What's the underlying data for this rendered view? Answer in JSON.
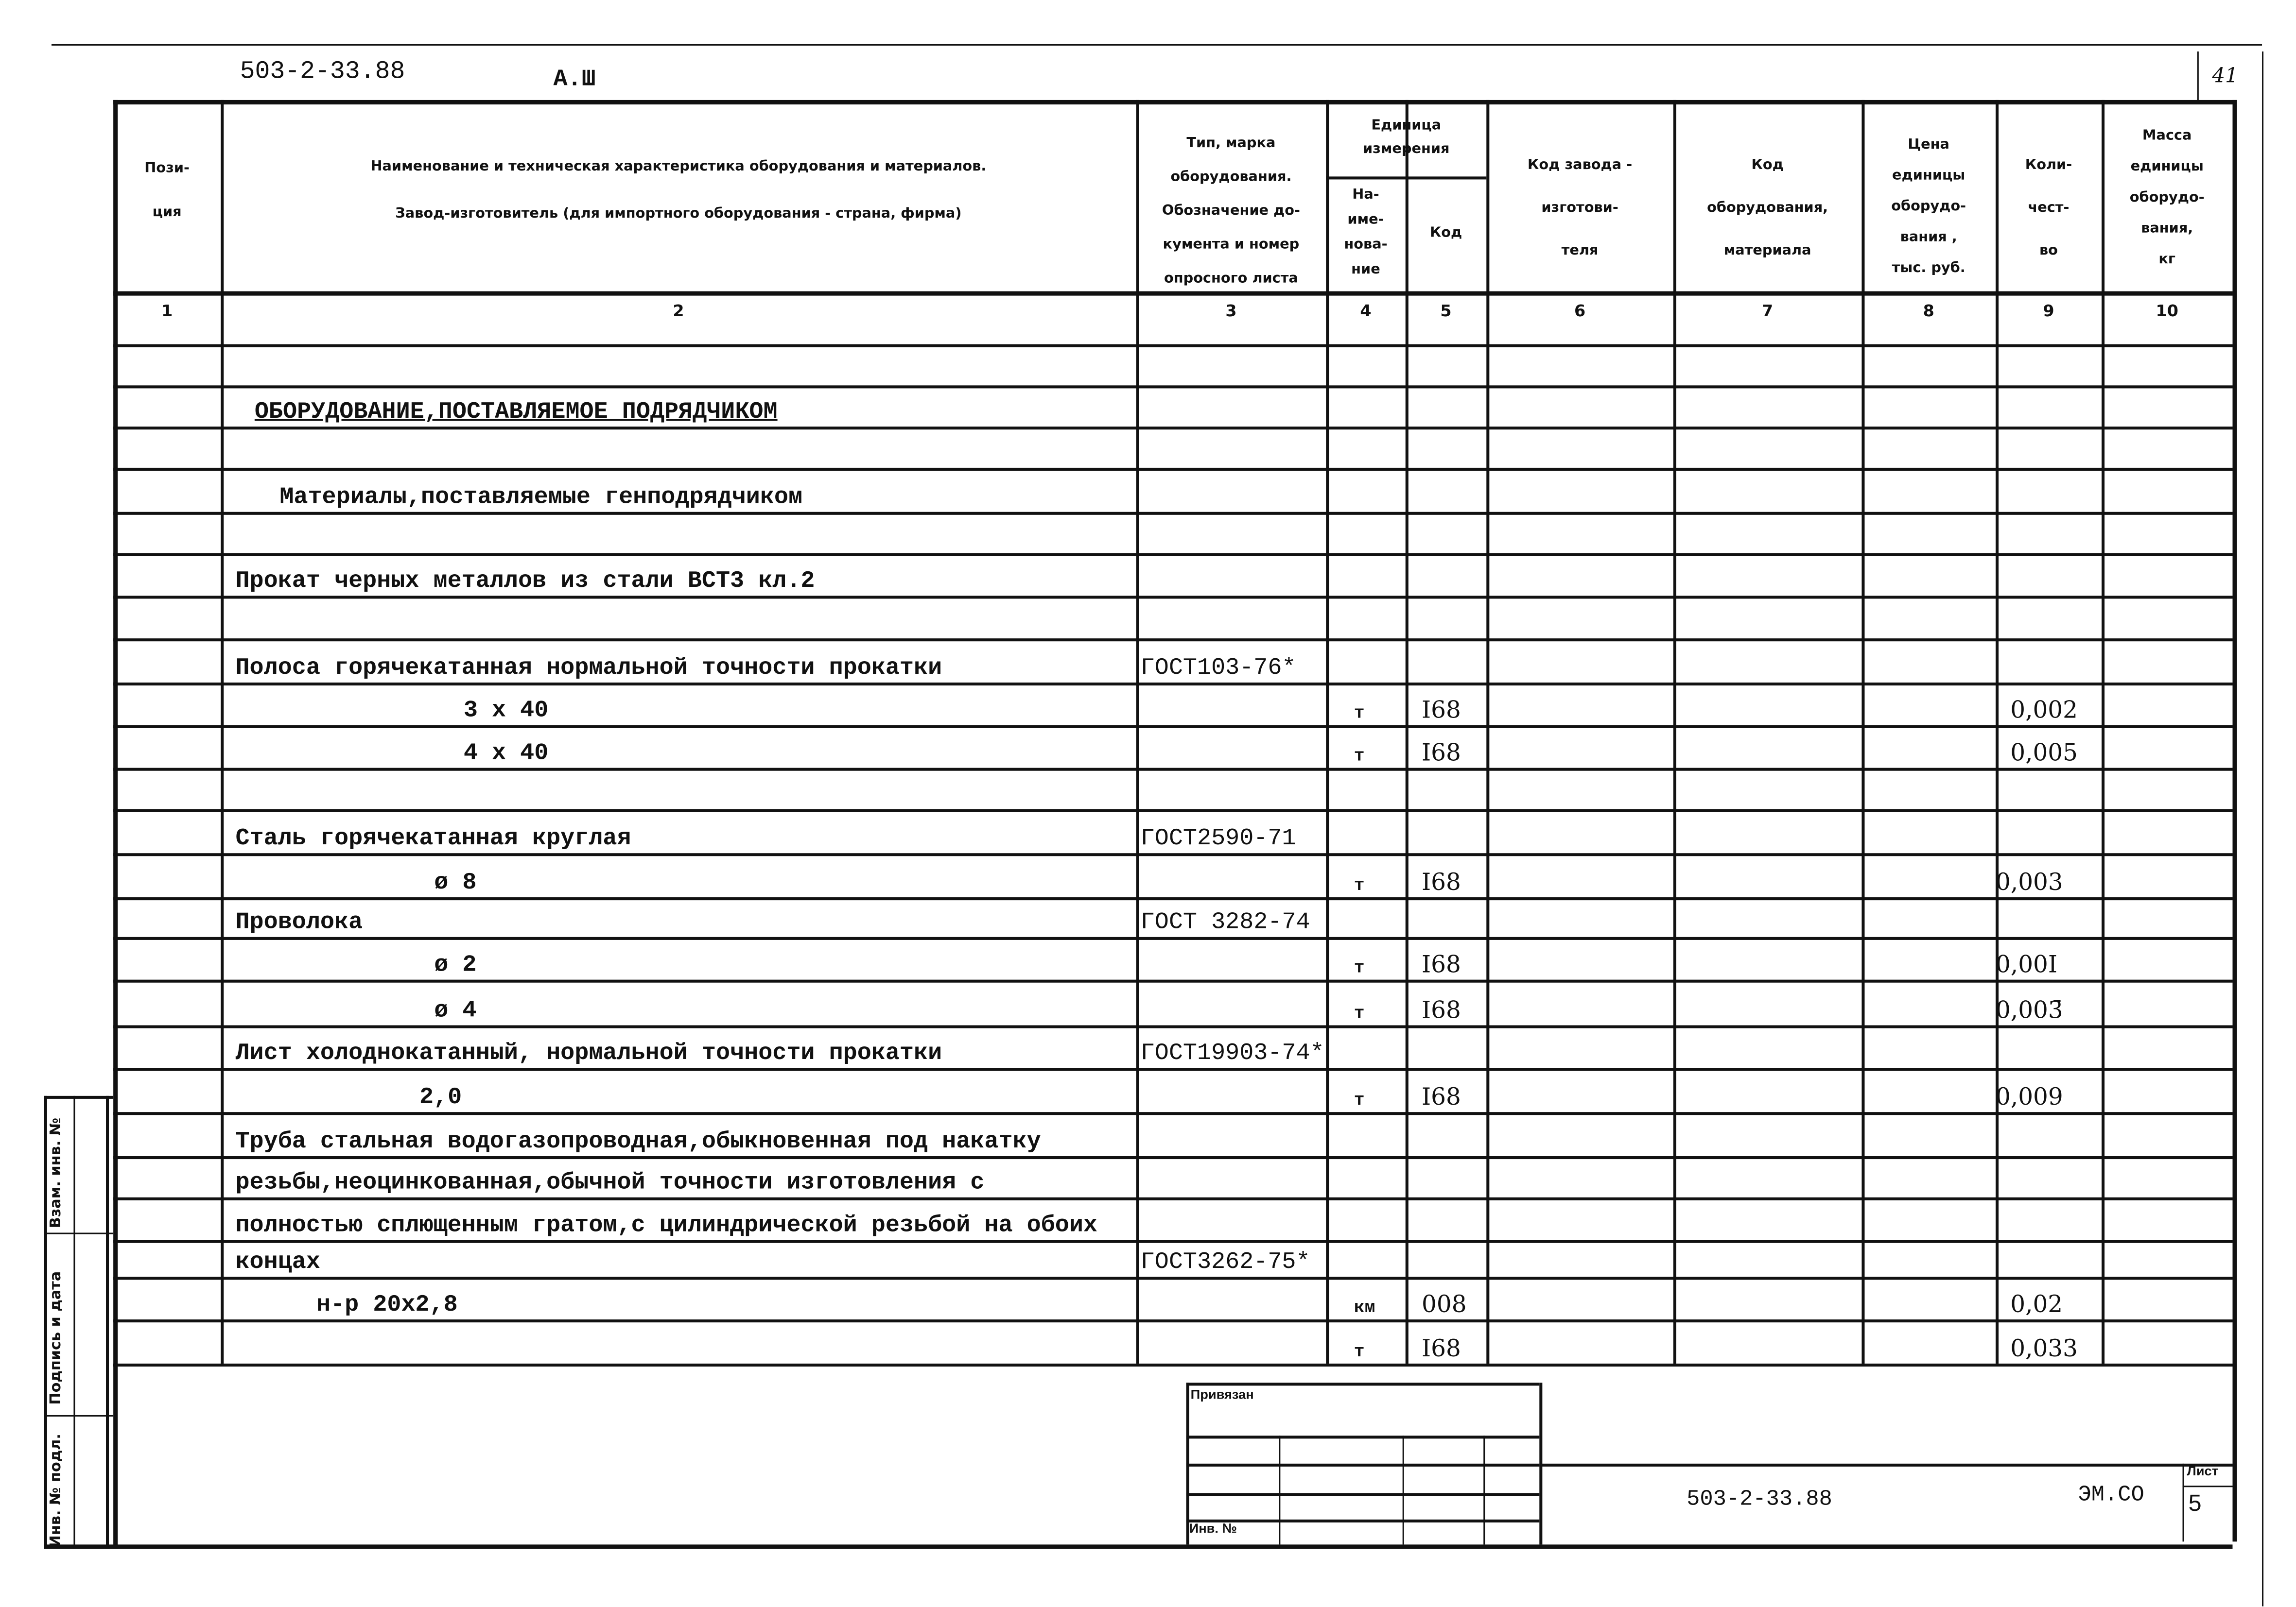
{
  "header": {
    "doc_code": "503-2-33.88",
    "album": "А.Ш",
    "page_number": "41"
  },
  "columns": {
    "c1": [
      "Пози-",
      "ция"
    ],
    "c2": [
      "Наименование и техническая характеристика  оборудования и материалов.",
      "Завод-изготовитель  (для импортного оборудования -  страна, фирма)"
    ],
    "c3": [
      "Тип,      марка",
      "оборудования.",
      "Обозначение  до-",
      "кумента  и  номер",
      "опросного листа"
    ],
    "unit_group": [
      "Единица",
      "измерения"
    ],
    "c4": [
      "На-",
      "име-",
      "нова-",
      "ние"
    ],
    "c5": [
      "Код"
    ],
    "c6": [
      "Код  завода -",
      "изготови-",
      "теля"
    ],
    "c7": [
      "Код",
      "оборудования,",
      "материала"
    ],
    "c8": [
      "Цена",
      "единицы",
      "оборудо-",
      "вания ,",
      "тыс. руб."
    ],
    "c9": [
      "Коли-",
      "чест-",
      "во"
    ],
    "c10": [
      "Масса",
      "единицы",
      "оборудо-",
      "вания,",
      "кг"
    ],
    "numbers": [
      "1",
      "2",
      "3",
      "4",
      "5",
      "6",
      "7",
      "8",
      "9",
      "10"
    ]
  },
  "rows": [
    {
      "name": "",
      "doc": "",
      "unit": "",
      "code": "",
      "qty": ""
    },
    {
      "name": "ОБОРУДОВАНИЕ,ПОСТАВЛЯЕМОЕ ПОДРЯДЧИКОМ",
      "doc": "",
      "unit": "",
      "code": "",
      "qty": ""
    },
    {
      "name": "",
      "doc": "",
      "unit": "",
      "code": "",
      "qty": ""
    },
    {
      "name": "Материалы,поставляемые генподрядчиком",
      "doc": "",
      "unit": "",
      "code": "",
      "qty": ""
    },
    {
      "name": "",
      "doc": "",
      "unit": "",
      "code": "",
      "qty": ""
    },
    {
      "name": "Прокат черных металлов из стали ВСТ3 кл.2",
      "doc": "",
      "unit": "",
      "code": "",
      "qty": ""
    },
    {
      "name": "",
      "doc": "",
      "unit": "",
      "code": "",
      "qty": ""
    },
    {
      "name": "Полоса горячекатанная нормальной точности прокатки",
      "doc": "ГОСТ103-76*",
      "unit": "",
      "code": "",
      "qty": ""
    },
    {
      "name": "3 x 40",
      "doc": "",
      "unit": "т",
      "code": "I68",
      "qty": "0,002"
    },
    {
      "name": "4 x 40",
      "doc": "",
      "unit": "т",
      "code": "I68",
      "qty": "0,005"
    },
    {
      "name": "",
      "doc": "",
      "unit": "",
      "code": "",
      "qty": ""
    },
    {
      "name": "Сталь горячекатанная круглая",
      "doc": "ГОСТ2590-71",
      "unit": "",
      "code": "",
      "qty": ""
    },
    {
      "name": "ø 8",
      "doc": "",
      "unit": "т",
      "code": "I68",
      "qty": "0,003"
    },
    {
      "name": "Проволока",
      "doc": "ГОСТ 3282-74",
      "unit": "",
      "code": "",
      "qty": ""
    },
    {
      "name": "ø 2",
      "doc": "",
      "unit": "т",
      "code": "I68",
      "qty": "0,00I"
    },
    {
      "name": "ø 4",
      "doc": "",
      "unit": "т",
      "code": "I68",
      "qty": "0,003̄"
    },
    {
      "name": "Лист холоднокатанный, нормальной точности прокатки",
      "doc": "ГОСТ19903-74*",
      "unit": "",
      "code": "",
      "qty": ""
    },
    {
      "name": "2,0",
      "doc": "",
      "unit": "т",
      "code": "I68",
      "qty": "0,009"
    },
    {
      "name": "Труба стальная водогазопроводная,обыкновенная под накатку",
      "doc": "",
      "unit": "",
      "code": "",
      "qty": ""
    },
    {
      "name": "резьбы,неоцинкованная,обычной точности изготовления с",
      "doc": "",
      "unit": "",
      "code": "",
      "qty": ""
    },
    {
      "name": "полностью сплющенным гратом,с цилиндрической резьбой на обоих",
      "doc": "",
      "unit": "",
      "code": "",
      "qty": ""
    },
    {
      "name": "концах",
      "doc": "ГОСТ3262-75*",
      "unit": "",
      "code": "",
      "qty": ""
    },
    {
      "name": "н-р   20х2,8",
      "doc": "",
      "unit": "км",
      "code": "008",
      "qty": "0,02"
    },
    {
      "name": "",
      "doc": "",
      "unit": "т",
      "code": "I68",
      "qty": "0,033"
    }
  ],
  "stamp": {
    "linked_label": "Привязан",
    "inv_label": "Инв. №",
    "doc_code": "503-2-33.88",
    "section": "ЭМ.СО",
    "sheet_label": "Лист",
    "sheet_number": "5"
  },
  "margin": {
    "replace_inv": "Взам. инв. №",
    "sign_date": "Подпись и дата",
    "inv_orig": "Инв. № подл."
  }
}
